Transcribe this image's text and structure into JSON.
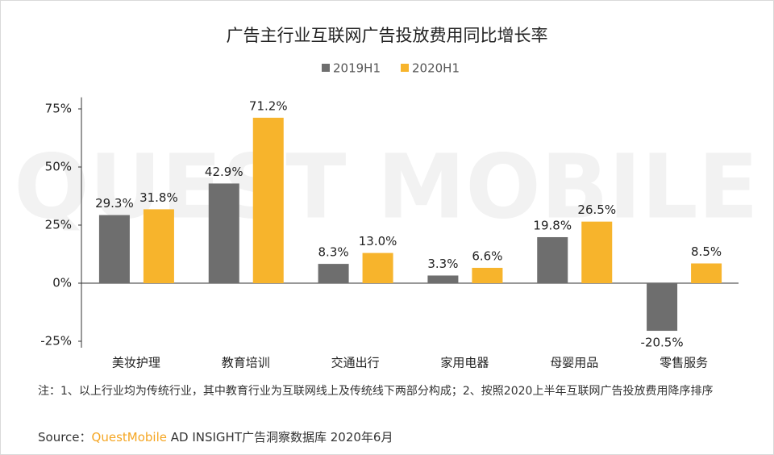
{
  "chart_data": {
    "type": "bar",
    "title": "广告主行业互联网广告投放费用同比增长率",
    "watermark": "QUEST MOBILE",
    "categories": [
      "美妆护理",
      "教育培训",
      "交通出行",
      "家用电器",
      "母婴用品",
      "零售服务"
    ],
    "series": [
      {
        "name": "2019H1",
        "color": "#6e6e6e",
        "values": [
          29.3,
          42.9,
          8.3,
          3.3,
          19.8,
          -20.5
        ],
        "value_labels": [
          "29.3%",
          "42.9%",
          "8.3%",
          "3.3%",
          "19.8%",
          "-20.5%"
        ]
      },
      {
        "name": "2020H1",
        "color": "#f7b42c",
        "values": [
          31.8,
          71.2,
          13.0,
          6.6,
          26.5,
          8.5
        ],
        "value_labels": [
          "31.8%",
          "71.2%",
          "13.0%",
          "6.6%",
          "26.5%",
          "8.5%"
        ]
      }
    ],
    "ylim": [
      -25,
      80
    ],
    "yticks": [
      {
        "value": -25,
        "label": "-25%"
      },
      {
        "value": 0,
        "label": "0%"
      },
      {
        "value": 25,
        "label": "25%"
      },
      {
        "value": 50,
        "label": "50%"
      },
      {
        "value": 75,
        "label": "75%"
      }
    ],
    "legend": "top"
  },
  "note": "注：1、以上行业均为传统行业，其中教育行业为互联网线上及传统线下两部分构成；2、按照2020上半年互联网广告投放费用降序排序",
  "source_label": "Source：",
  "source_brand": "QuestMobile",
  "source_text": " AD INSIGHT广告洞察数据库 2020年6月"
}
